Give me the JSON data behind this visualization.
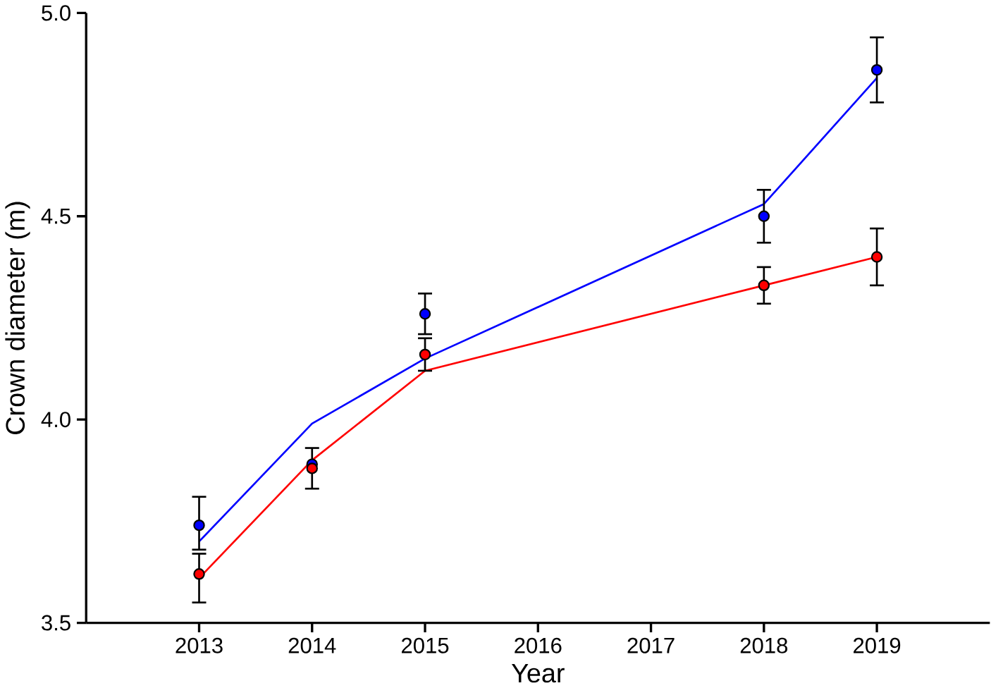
{
  "chart_data": {
    "type": "scatter",
    "xlabel": "Year",
    "ylabel": "Crown diameter (m)",
    "xlim": [
      2012,
      2020
    ],
    "xticks": [
      2013,
      2014,
      2015,
      2016,
      2017,
      2018,
      2019
    ],
    "ylim": [
      3.5,
      5.0
    ],
    "yticks": [
      {
        "value": 3.5,
        "label": "3.5"
      },
      {
        "value": 4.0,
        "label": "4.0"
      },
      {
        "value": 4.5,
        "label": "4.5"
      },
      {
        "value": 5.0,
        "label": "5.0"
      }
    ],
    "grid": false,
    "series": [
      {
        "type": "line",
        "color": "#0000ff",
        "x": [
          2013,
          2014,
          2015,
          2018,
          2019
        ],
        "values": [
          3.7,
          3.99,
          4.15,
          4.53,
          4.84
        ],
        "marker": "none",
        "line_style": "solid"
      },
      {
        "type": "line",
        "color": "#ff0000",
        "x": [
          2013,
          2014,
          2015,
          2018,
          2019
        ],
        "values": [
          3.61,
          3.9,
          4.12,
          4.33,
          4.4
        ],
        "marker": "none",
        "line_style": "solid"
      },
      {
        "color": "#0000ff",
        "marker": "circle",
        "x": [
          2013,
          2014,
          2015,
          2018,
          2019
        ],
        "values": [
          3.74,
          3.89,
          4.26,
          4.5,
          4.86
        ],
        "errors": [
          [
            3.68,
            3.81
          ],
          null,
          0.05,
          0.065,
          0.08
        ]
      },
      {
        "color": "#ff0000",
        "marker": "circle",
        "x": [
          2013,
          2014,
          2015,
          2018,
          2019
        ],
        "values": [
          3.62,
          3.88,
          4.16,
          4.33,
          4.4
        ],
        "errors": [
          [
            3.55,
            3.67
          ],
          0.05,
          0.04,
          0.045,
          0.07
        ]
      }
    ]
  }
}
